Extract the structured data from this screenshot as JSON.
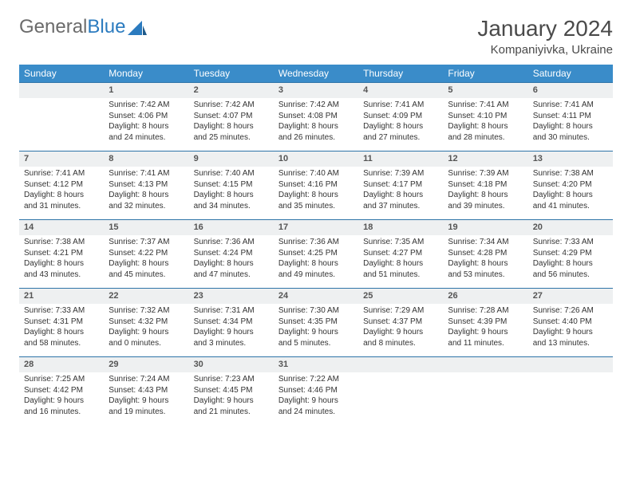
{
  "brand": {
    "general": "General",
    "blue": "Blue"
  },
  "title": "January 2024",
  "location": "Kompaniyivka, Ukraine",
  "colors": {
    "header_bg": "#3a8cc9",
    "daynum_bg": "#eef0f1",
    "border": "#2e74a8",
    "text": "#333333"
  },
  "dayNames": [
    "Sunday",
    "Monday",
    "Tuesday",
    "Wednesday",
    "Thursday",
    "Friday",
    "Saturday"
  ],
  "weeks": [
    {
      "nums": [
        "",
        "1",
        "2",
        "3",
        "4",
        "5",
        "6"
      ],
      "cells": [
        "",
        "Sunrise: 7:42 AM\nSunset: 4:06 PM\nDaylight: 8 hours and 24 minutes.",
        "Sunrise: 7:42 AM\nSunset: 4:07 PM\nDaylight: 8 hours and 25 minutes.",
        "Sunrise: 7:42 AM\nSunset: 4:08 PM\nDaylight: 8 hours and 26 minutes.",
        "Sunrise: 7:41 AM\nSunset: 4:09 PM\nDaylight: 8 hours and 27 minutes.",
        "Sunrise: 7:41 AM\nSunset: 4:10 PM\nDaylight: 8 hours and 28 minutes.",
        "Sunrise: 7:41 AM\nSunset: 4:11 PM\nDaylight: 8 hours and 30 minutes."
      ]
    },
    {
      "nums": [
        "7",
        "8",
        "9",
        "10",
        "11",
        "12",
        "13"
      ],
      "cells": [
        "Sunrise: 7:41 AM\nSunset: 4:12 PM\nDaylight: 8 hours and 31 minutes.",
        "Sunrise: 7:41 AM\nSunset: 4:13 PM\nDaylight: 8 hours and 32 minutes.",
        "Sunrise: 7:40 AM\nSunset: 4:15 PM\nDaylight: 8 hours and 34 minutes.",
        "Sunrise: 7:40 AM\nSunset: 4:16 PM\nDaylight: 8 hours and 35 minutes.",
        "Sunrise: 7:39 AM\nSunset: 4:17 PM\nDaylight: 8 hours and 37 minutes.",
        "Sunrise: 7:39 AM\nSunset: 4:18 PM\nDaylight: 8 hours and 39 minutes.",
        "Sunrise: 7:38 AM\nSunset: 4:20 PM\nDaylight: 8 hours and 41 minutes."
      ]
    },
    {
      "nums": [
        "14",
        "15",
        "16",
        "17",
        "18",
        "19",
        "20"
      ],
      "cells": [
        "Sunrise: 7:38 AM\nSunset: 4:21 PM\nDaylight: 8 hours and 43 minutes.",
        "Sunrise: 7:37 AM\nSunset: 4:22 PM\nDaylight: 8 hours and 45 minutes.",
        "Sunrise: 7:36 AM\nSunset: 4:24 PM\nDaylight: 8 hours and 47 minutes.",
        "Sunrise: 7:36 AM\nSunset: 4:25 PM\nDaylight: 8 hours and 49 minutes.",
        "Sunrise: 7:35 AM\nSunset: 4:27 PM\nDaylight: 8 hours and 51 minutes.",
        "Sunrise: 7:34 AM\nSunset: 4:28 PM\nDaylight: 8 hours and 53 minutes.",
        "Sunrise: 7:33 AM\nSunset: 4:29 PM\nDaylight: 8 hours and 56 minutes."
      ]
    },
    {
      "nums": [
        "21",
        "22",
        "23",
        "24",
        "25",
        "26",
        "27"
      ],
      "cells": [
        "Sunrise: 7:33 AM\nSunset: 4:31 PM\nDaylight: 8 hours and 58 minutes.",
        "Sunrise: 7:32 AM\nSunset: 4:32 PM\nDaylight: 9 hours and 0 minutes.",
        "Sunrise: 7:31 AM\nSunset: 4:34 PM\nDaylight: 9 hours and 3 minutes.",
        "Sunrise: 7:30 AM\nSunset: 4:35 PM\nDaylight: 9 hours and 5 minutes.",
        "Sunrise: 7:29 AM\nSunset: 4:37 PM\nDaylight: 9 hours and 8 minutes.",
        "Sunrise: 7:28 AM\nSunset: 4:39 PM\nDaylight: 9 hours and 11 minutes.",
        "Sunrise: 7:26 AM\nSunset: 4:40 PM\nDaylight: 9 hours and 13 minutes."
      ]
    },
    {
      "nums": [
        "28",
        "29",
        "30",
        "31",
        "",
        "",
        ""
      ],
      "cells": [
        "Sunrise: 7:25 AM\nSunset: 4:42 PM\nDaylight: 9 hours and 16 minutes.",
        "Sunrise: 7:24 AM\nSunset: 4:43 PM\nDaylight: 9 hours and 19 minutes.",
        "Sunrise: 7:23 AM\nSunset: 4:45 PM\nDaylight: 9 hours and 21 minutes.",
        "Sunrise: 7:22 AM\nSunset: 4:46 PM\nDaylight: 9 hours and 24 minutes.",
        "",
        "",
        ""
      ]
    }
  ]
}
